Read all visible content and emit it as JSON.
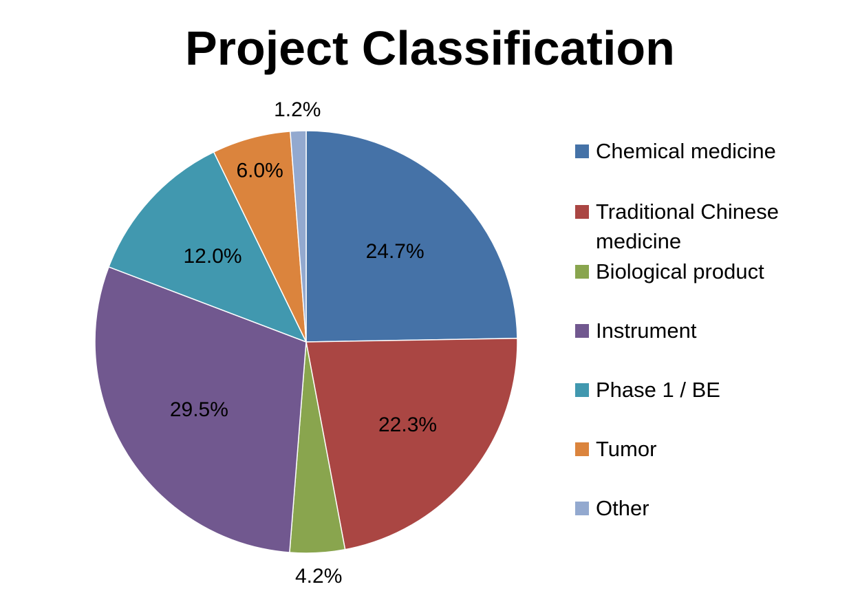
{
  "chart_data": {
    "type": "pie",
    "title": "Project Classification",
    "legend_position": "right",
    "slices": [
      {
        "name": "Chemical medicine",
        "value": 24.7,
        "label": "24.7%",
        "color": "#4572a7"
      },
      {
        "name": "Traditional Chinese medicine",
        "value": 22.3,
        "label": "22.3%",
        "color": "#aa4643"
      },
      {
        "name": "Biological product",
        "value": 4.2,
        "label": "4.2%",
        "color": "#89a54e"
      },
      {
        "name": "Instrument",
        "value": 29.5,
        "label": "29.5%",
        "color": "#71588f"
      },
      {
        "name": "Phase 1 / BE",
        "value": 12.0,
        "label": "12.0%",
        "color": "#4198af"
      },
      {
        "name": "Tumor",
        "value": 6.0,
        "label": "6.0%",
        "color": "#db843d"
      },
      {
        "name": "Other",
        "value": 1.2,
        "label": "1.2%",
        "color": "#93a9cf"
      }
    ]
  }
}
